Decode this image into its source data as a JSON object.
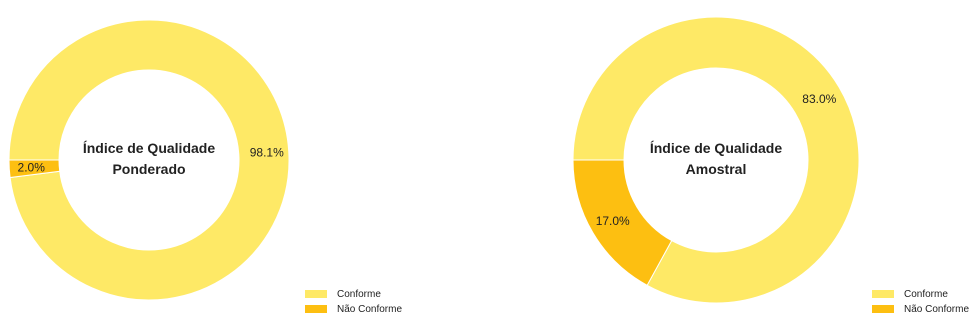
{
  "chart_data": [
    {
      "type": "pie",
      "title": "Índice de Qualidade Ponderado",
      "title_lines": [
        "Índice de Qualidade",
        "Ponderado"
      ],
      "donut": true,
      "categories": [
        "Conforme",
        "Não Conforme"
      ],
      "values": [
        98.1,
        2.0
      ],
      "value_labels": [
        "98.1%",
        "2.0%"
      ],
      "colors": [
        "#fee966",
        "#fdbf11"
      ],
      "legend": {
        "position": "bottom-right",
        "items": [
          "Conforme",
          "Não Conforme"
        ]
      }
    },
    {
      "type": "pie",
      "title": "Índice de Qualidade Amostral",
      "title_lines": [
        "Índice de Qualidade",
        "Amostral"
      ],
      "donut": true,
      "categories": [
        "Conforme",
        "Não Conforme"
      ],
      "values": [
        83.0,
        17.0
      ],
      "value_labels": [
        "83.0%",
        "17.0%"
      ],
      "colors": [
        "#fee966",
        "#fdbf11"
      ],
      "legend": {
        "position": "bottom-right",
        "items": [
          "Conforme",
          "Não Conforme"
        ]
      }
    }
  ]
}
